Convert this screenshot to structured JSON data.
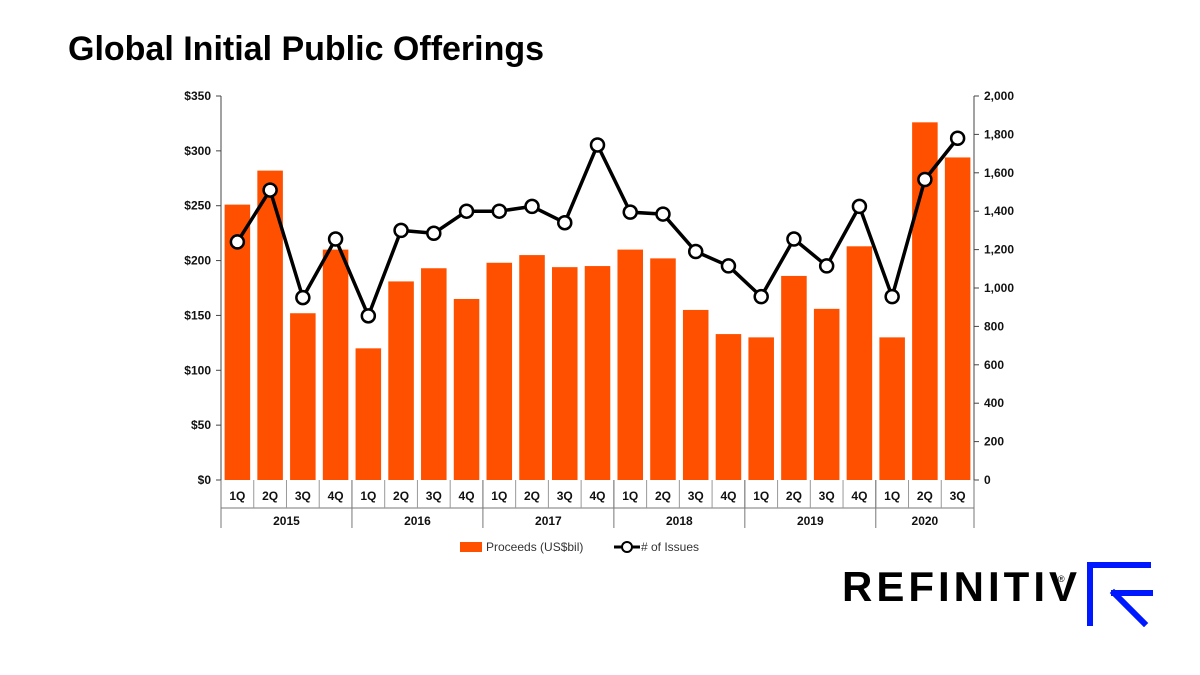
{
  "page": {
    "title": "Global Initial Public Offerings",
    "brand": {
      "name": "REFINITIV",
      "registered": "®"
    }
  },
  "colors": {
    "bars": "#ff5000",
    "line": "#000000",
    "marker_fill": "#ffffff",
    "brand_accent": "#0018ff"
  },
  "chart_data": {
    "type": "bar",
    "title": "",
    "categories": [
      "1Q",
      "2Q",
      "3Q",
      "4Q",
      "1Q",
      "2Q",
      "3Q",
      "4Q",
      "1Q",
      "2Q",
      "3Q",
      "4Q",
      "1Q",
      "2Q",
      "3Q",
      "4Q",
      "1Q",
      "2Q",
      "3Q",
      "4Q",
      "1Q",
      "2Q",
      "3Q"
    ],
    "years": [
      {
        "label": "2015",
        "count": 4
      },
      {
        "label": "2016",
        "count": 4
      },
      {
        "label": "2017",
        "count": 4
      },
      {
        "label": "2018",
        "count": 4
      },
      {
        "label": "2019",
        "count": 4
      },
      {
        "label": "2020",
        "count": 3
      }
    ],
    "series": [
      {
        "name": "Proceeds (US$bil)",
        "type": "bar",
        "axis": "left",
        "values": [
          251,
          282,
          152,
          210,
          120,
          181,
          193,
          165,
          198,
          205,
          194,
          195,
          210,
          202,
          155,
          133,
          130,
          186,
          156,
          213,
          130,
          326,
          294
        ]
      },
      {
        "name": "# of Issues",
        "type": "line",
        "axis": "right",
        "values": [
          1240,
          1510,
          950,
          1255,
          855,
          1300,
          1285,
          1400,
          1400,
          1425,
          1340,
          1745,
          1395,
          1385,
          1190,
          1115,
          955,
          1255,
          1115,
          1425,
          955,
          1565,
          1780
        ]
      }
    ],
    "y_left": {
      "range": [
        0,
        350
      ],
      "ticks": [
        0,
        50,
        100,
        150,
        200,
        250,
        300,
        350
      ],
      "tick_labels": [
        "$0",
        "$50",
        "$100",
        "$150",
        "$200",
        "$250",
        "$300",
        "$350"
      ]
    },
    "y_right": {
      "range": [
        0,
        2000
      ],
      "ticks": [
        0,
        200,
        400,
        600,
        800,
        1000,
        1200,
        1400,
        1600,
        1800,
        2000
      ],
      "tick_labels": [
        "0",
        "200",
        "400",
        "600",
        "800",
        "1,000",
        "1,200",
        "1,400",
        "1,600",
        "1,800",
        "2,000"
      ]
    },
    "grid": false,
    "legend": {
      "placement": "bottom",
      "entries": [
        "Proceeds (US$bil)",
        "# of Issues"
      ]
    }
  }
}
